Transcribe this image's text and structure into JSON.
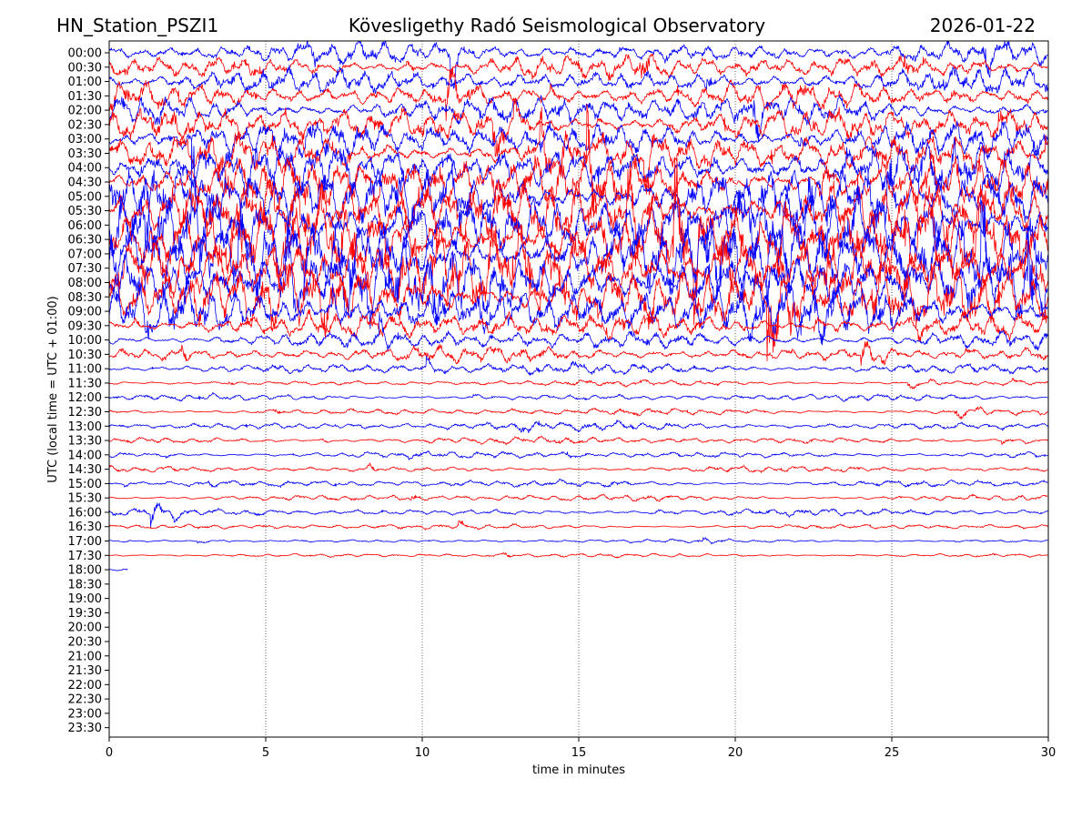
{
  "header": {
    "station": "HN_Station_PSZI1",
    "observatory": "Kövesligethy Radó Seismological Observatory",
    "date": "2026-01-22"
  },
  "chart_data": {
    "type": "line",
    "title": "Kövesligethy Radó Seismological Observatory",
    "xlabel": "time in minutes",
    "ylabel": "UTC (local time = UTC + 01:00)",
    "xlim": [
      0,
      30
    ],
    "xticks": [
      "0",
      "5",
      "10",
      "15",
      "20",
      "25",
      "30"
    ],
    "xtick_values": [
      0,
      5,
      10,
      15,
      20,
      25,
      30
    ],
    "yticks": [
      "00:00",
      "00:30",
      "01:00",
      "01:30",
      "02:00",
      "02:30",
      "03:00",
      "03:30",
      "04:00",
      "04:30",
      "05:00",
      "05:30",
      "06:00",
      "06:30",
      "07:00",
      "07:30",
      "08:00",
      "08:30",
      "09:00",
      "09:30",
      "10:00",
      "10:30",
      "11:00",
      "11:30",
      "12:00",
      "12:30",
      "13:00",
      "13:30",
      "14:00",
      "14:30",
      "15:00",
      "15:30",
      "16:00",
      "16:30",
      "17:00",
      "17:30",
      "18:00",
      "18:30",
      "19:00",
      "19:30",
      "20:00",
      "20:30",
      "21:00",
      "21:30",
      "22:00",
      "22:30",
      "23:00",
      "23:30"
    ],
    "grid": "vertical dotted at x ticks",
    "trace_colors": [
      "#0000ff",
      "#ff0000"
    ],
    "trace_amplitude": [
      1.8,
      2.0,
      2.0,
      2.2,
      2.5,
      2.8,
      3.0,
      3.3,
      4.0,
      4.5,
      5.0,
      5.5,
      6.0,
      6.3,
      6.5,
      6.5,
      6.0,
      5.5,
      4.5,
      2.2,
      1.5,
      1.3,
      1.0,
      0.5,
      0.55,
      0.6,
      0.75,
      0.6,
      0.6,
      0.5,
      0.6,
      0.55,
      0.6,
      0.45,
      0.3,
      0.35,
      0.3
    ],
    "traces_shown": 37,
    "last_trace_end_minutes": 0.6
  }
}
